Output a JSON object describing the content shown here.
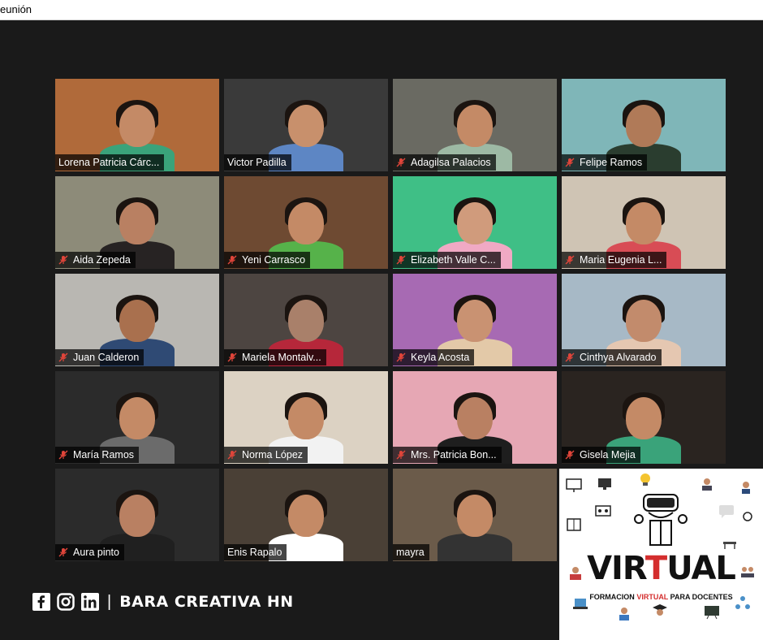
{
  "window": {
    "title": "eunión"
  },
  "participants": [
    {
      "name": "Lorena Patricia Cárc...",
      "muted": false,
      "active": false,
      "bg": "#b06a3a",
      "skin": "#c48a66",
      "shirt": "#3aa37a"
    },
    {
      "name": "Victor Padilla",
      "muted": false,
      "active": true,
      "bg": "#3a3a3a",
      "skin": "#c8906c",
      "shirt": "#5d86c4"
    },
    {
      "name": "Adagilsa Palacios",
      "muted": true,
      "active": false,
      "bg": "#6a6a62",
      "skin": "#c48a66",
      "shirt": "#9db9a4"
    },
    {
      "name": "Felipe Ramos",
      "muted": true,
      "active": false,
      "bg": "#7fb6b8",
      "skin": "#b07a58",
      "shirt": "#2a3d2f"
    },
    {
      "name": "Aida Zepeda",
      "muted": true,
      "active": false,
      "bg": "#8d8b79",
      "skin": "#b98062",
      "shirt": "#272323"
    },
    {
      "name": "Yeni Carrasco",
      "muted": true,
      "active": false,
      "bg": "#6e4a32",
      "skin": "#c48a66",
      "shirt": "#56b24a"
    },
    {
      "name": "Elizabeth Valle C...",
      "muted": true,
      "active": false,
      "bg": "#3fbf86",
      "skin": "#d09b7c",
      "shirt": "#f0a9c4"
    },
    {
      "name": "Maria Eugenia L...",
      "muted": true,
      "active": false,
      "bg": "#cfc4b4",
      "skin": "#c48a66",
      "shirt": "#d84c55"
    },
    {
      "name": "Juan Calderon",
      "muted": true,
      "active": false,
      "bg": "#b9b7b2",
      "skin": "#a9704e",
      "shirt": "#2f4a74"
    },
    {
      "name": "Mariela Montalv...",
      "muted": true,
      "active": false,
      "bg": "#4d4541",
      "skin": "#a9806a",
      "shirt": "#b6273a"
    },
    {
      "name": "Keyla Acosta",
      "muted": true,
      "active": false,
      "bg": "#a76ab3",
      "skin": "#c99272",
      "shirt": "#e3c9a8"
    },
    {
      "name": "Cinthya Alvarado",
      "muted": true,
      "active": false,
      "bg": "#a7b9c6",
      "skin": "#c28b6c",
      "shirt": "#e5c7b1"
    },
    {
      "name": "María Ramos",
      "muted": true,
      "active": false,
      "bg": "#2b2b2b",
      "skin": "#c48a66",
      "shirt": "#6b6b6b"
    },
    {
      "name": "Norma López",
      "muted": true,
      "active": false,
      "bg": "#dcd2c3",
      "skin": "#c48a66",
      "shirt": "#f2f2f2"
    },
    {
      "name": "Mrs. Patricia Bon...",
      "muted": true,
      "active": false,
      "bg": "#e6a7b4",
      "skin": "#b98062",
      "shirt": "#1e1e1e"
    },
    {
      "name": "Gisela Mejia",
      "muted": true,
      "active": false,
      "bg": "#2a2420",
      "skin": "#c48a66",
      "shirt": "#3aa37a"
    },
    {
      "name": "Aura pinto",
      "muted": true,
      "active": false,
      "bg": "#2b2b2b",
      "skin": "#b98062",
      "shirt": "#202020"
    },
    {
      "name": "Enis Rapalo",
      "muted": false,
      "active": false,
      "bg": "#4a4036",
      "skin": "#c48a66",
      "shirt": "#ffffff"
    },
    {
      "name": "mayra",
      "muted": false,
      "active": false,
      "bg": "#6b5b4a",
      "skin": "#c48a66",
      "shirt": "#333333"
    }
  ],
  "promo": {
    "brand_prefix": "VIR",
    "brand_highlight": "T",
    "brand_suffix": "UAL",
    "tagline_prefix": "FORMACION ",
    "tagline_highlight": "VIRTUAL",
    "tagline_suffix": " PARA DOCENTES"
  },
  "footer": {
    "icons": [
      "facebook-icon",
      "instagram-icon",
      "linkedin-icon"
    ],
    "separator": "|",
    "handle": "BARA CREATIVA HN"
  },
  "colors": {
    "active_speaker_border": "#e9e76a",
    "muted_icon": "#e0453a",
    "accent_red": "#d42e2e"
  }
}
